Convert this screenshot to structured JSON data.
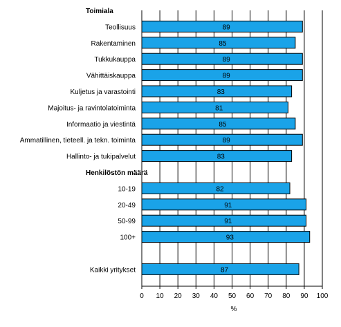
{
  "chart_data": {
    "type": "bar",
    "orientation": "horizontal",
    "xlabel": "%",
    "xlim": [
      0,
      100
    ],
    "xticks": [
      "0",
      "10",
      "20",
      "30",
      "40",
      "50",
      "60",
      "70",
      "80",
      "90",
      "100"
    ],
    "grid": "vertical",
    "bar_color": "#1aa3e8",
    "rows": [
      {
        "kind": "group",
        "label": "Toimiala"
      },
      {
        "kind": "bar",
        "label": "Teollisuus",
        "value": 89
      },
      {
        "kind": "bar",
        "label": "Rakentaminen",
        "value": 85
      },
      {
        "kind": "bar",
        "label": "Tukkukauppa",
        "value": 89
      },
      {
        "kind": "bar",
        "label": "Vähittäiskauppa",
        "value": 89
      },
      {
        "kind": "bar",
        "label": "Kuljetus ja varastointi",
        "value": 83
      },
      {
        "kind": "bar",
        "label": "Majoitus- ja ravintolatoiminta",
        "value": 81
      },
      {
        "kind": "bar",
        "label": "Informaatio ja viestintä",
        "value": 85
      },
      {
        "kind": "bar",
        "label": "Ammatillinen, tieteell. ja tekn. toiminta",
        "value": 89
      },
      {
        "kind": "bar",
        "label": "Hallinto- ja tukipalvelut",
        "value": 83
      },
      {
        "kind": "group",
        "label": "Henkilöstön määrä"
      },
      {
        "kind": "bar",
        "label": "10-19",
        "value": 82
      },
      {
        "kind": "bar",
        "label": "20-49",
        "value": 91
      },
      {
        "kind": "bar",
        "label": "50-99",
        "value": 91
      },
      {
        "kind": "bar",
        "label": "100+",
        "value": 93
      },
      {
        "kind": "blank",
        "label": ""
      },
      {
        "kind": "bar",
        "label": "Kaikki yritykset",
        "value": 87
      }
    ]
  }
}
